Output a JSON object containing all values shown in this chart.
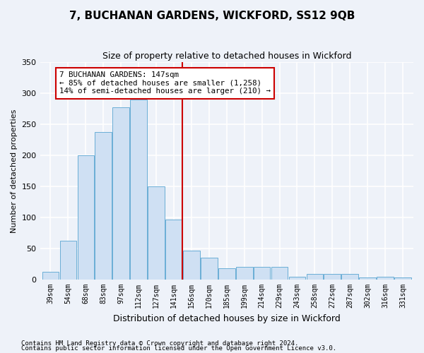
{
  "title": "7, BUCHANAN GARDENS, WICKFORD, SS12 9QB",
  "subtitle": "Size of property relative to detached houses in Wickford",
  "xlabel": "Distribution of detached houses by size in Wickford",
  "ylabel": "Number of detached properties",
  "categories": [
    "39sqm",
    "54sqm",
    "68sqm",
    "83sqm",
    "97sqm",
    "112sqm",
    "127sqm",
    "141sqm",
    "156sqm",
    "170sqm",
    "185sqm",
    "199sqm",
    "214sqm",
    "229sqm",
    "243sqm",
    "258sqm",
    "272sqm",
    "287sqm",
    "302sqm",
    "316sqm",
    "331sqm"
  ],
  "values": [
    13,
    63,
    200,
    237,
    277,
    290,
    150,
    97,
    47,
    35,
    18,
    20,
    20,
    20,
    5,
    9,
    9,
    9,
    4,
    5,
    3
  ],
  "bar_color": "#cfe0f3",
  "bar_edge_color": "#6aaed6",
  "ylim": [
    0,
    350
  ],
  "yticks": [
    0,
    50,
    100,
    150,
    200,
    250,
    300,
    350
  ],
  "vline_x_index": 7.5,
  "vline_color": "#cc0000",
  "annotation_title": "7 BUCHANAN GARDENS: 147sqm",
  "annotation_line1": "← 85% of detached houses are smaller (1,258)",
  "annotation_line2": "14% of semi-detached houses are larger (210) →",
  "annotation_box_color": "#cc0000",
  "background_color": "#eef2f9",
  "grid_color": "#ffffff",
  "title_fontsize": 11,
  "subtitle_fontsize": 9,
  "ylabel_fontsize": 8,
  "xlabel_fontsize": 9,
  "footer1": "Contains HM Land Registry data © Crown copyright and database right 2024.",
  "footer2": "Contains public sector information licensed under the Open Government Licence v3.0."
}
